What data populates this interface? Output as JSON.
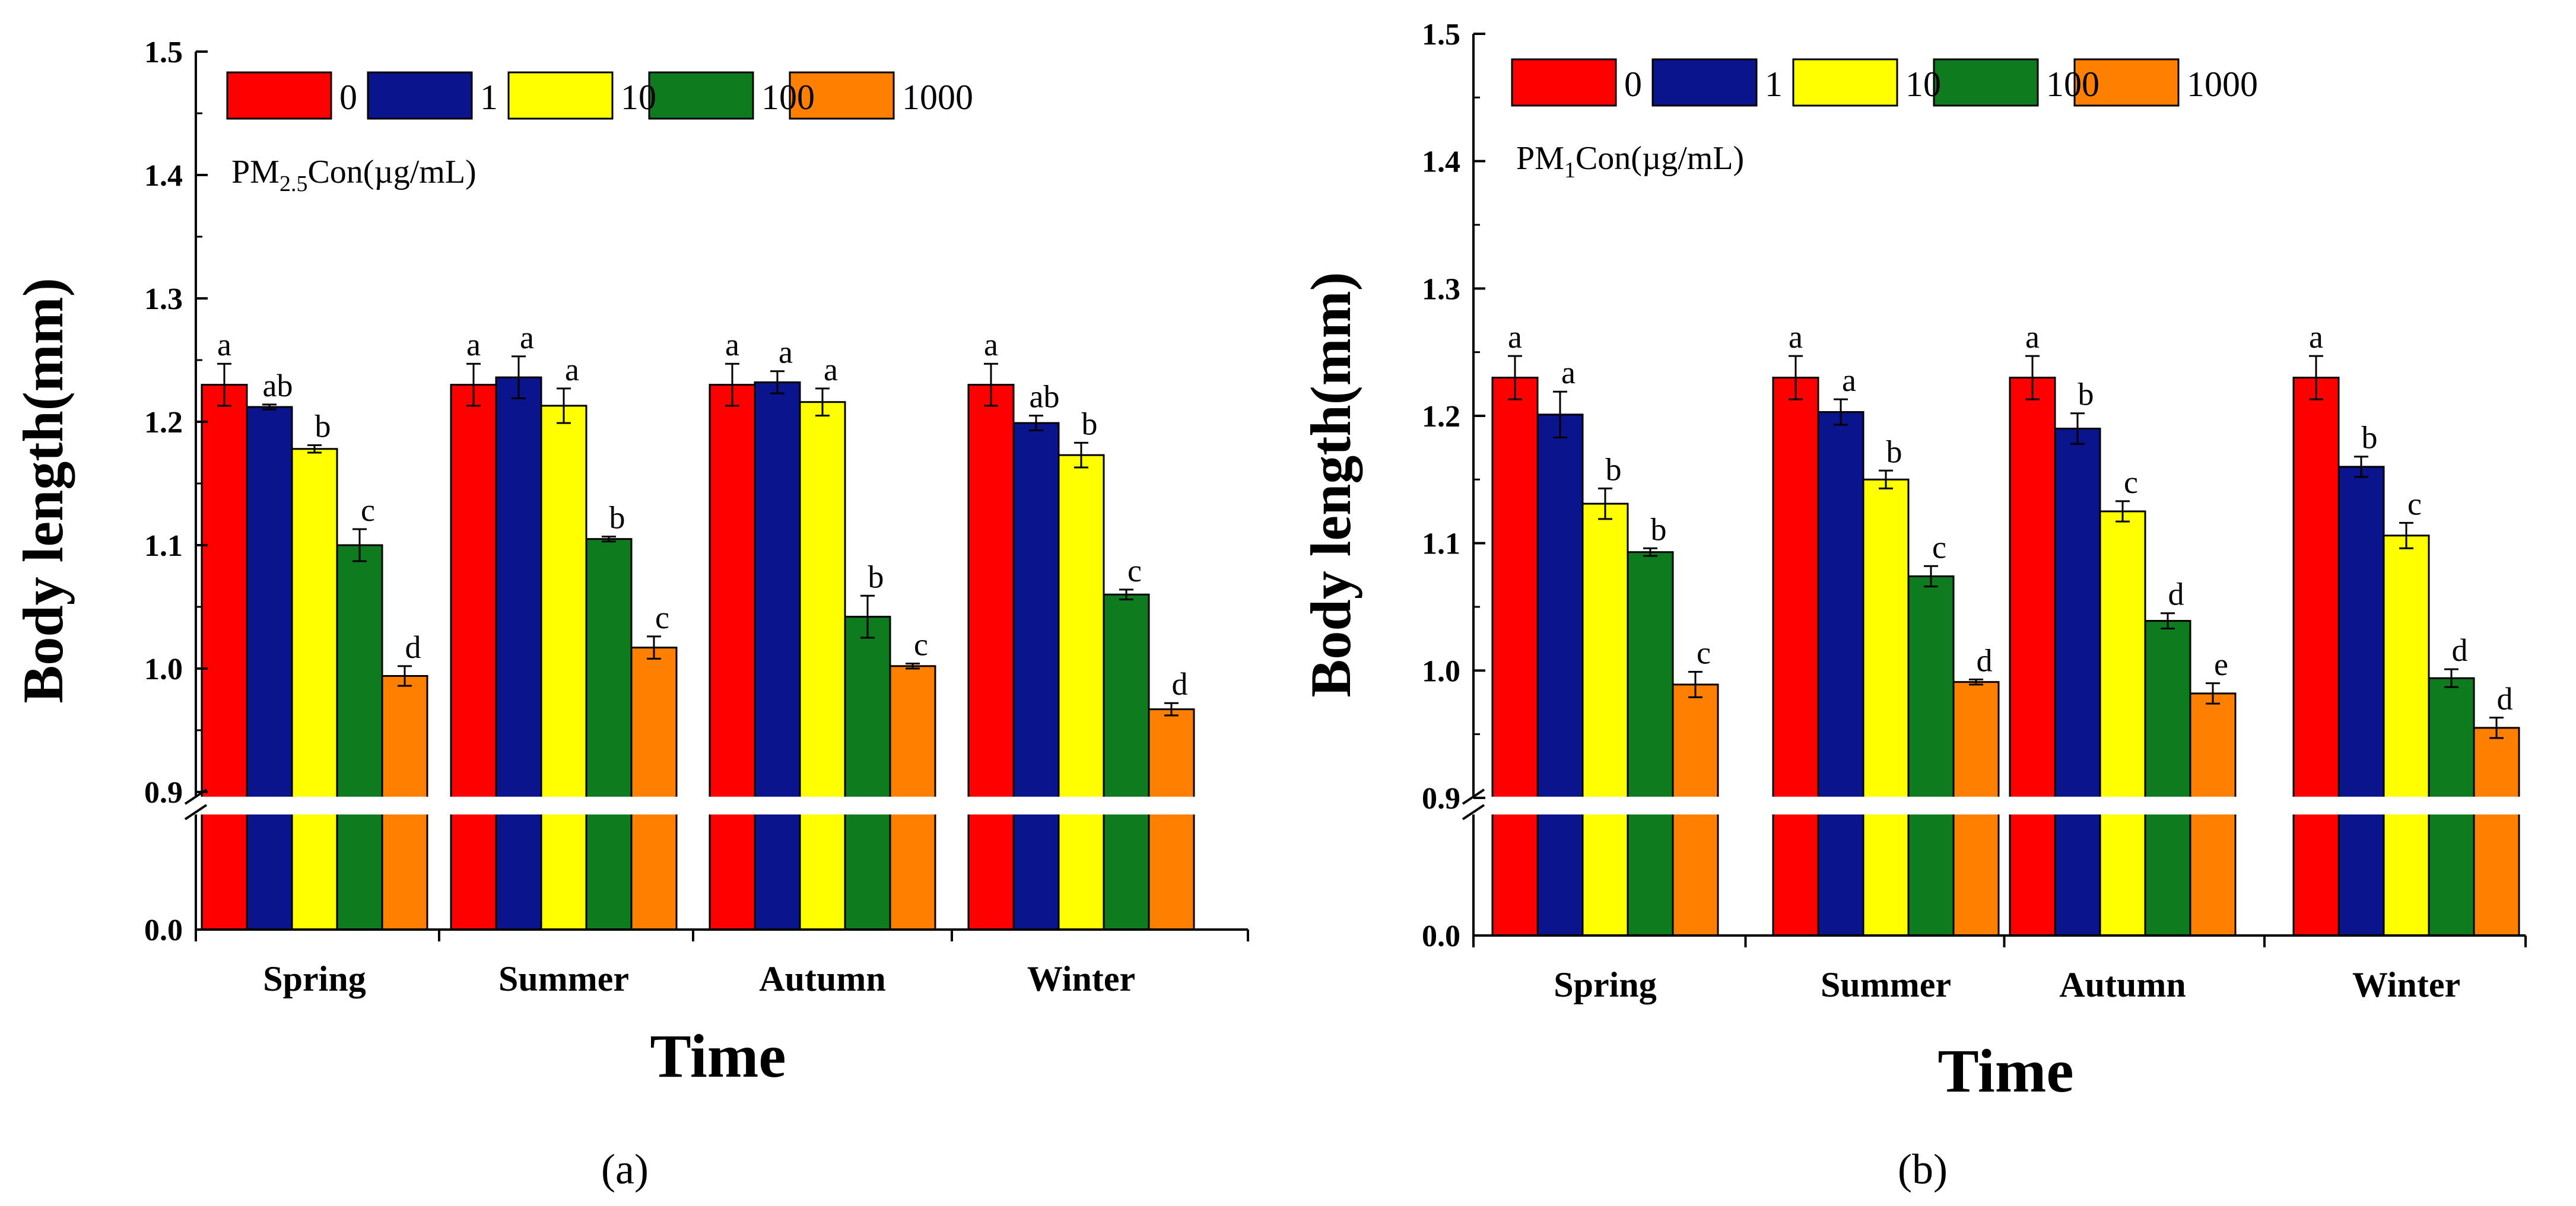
{
  "chart_data": [
    {
      "type": "bar",
      "panel_label": "(a)",
      "panel_letter": "a",
      "legend_title_prefix": "PM",
      "legend_title_sub": "2.5",
      "legend_title_suffix": "Con(µg/mL)",
      "xlabel": "Time",
      "ylabel": "Body length(mm)",
      "categories": [
        "Spring",
        "Summer",
        "Autumn",
        "Winter"
      ],
      "upper_ylim": [
        0.9,
        1.5
      ],
      "y_ticks_upper": [
        "0.9",
        "1.0",
        "1.1",
        "1.2",
        "1.3",
        "1.4",
        "1.5"
      ],
      "y_tick_lower": "0.0",
      "axis_break": true,
      "series": [
        {
          "name": "0",
          "color": "#ff0000",
          "values": [
            1.23,
            1.23,
            1.23,
            1.23
          ],
          "errors": [
            0.017,
            0.017,
            0.017,
            0.017
          ],
          "letters": [
            "a",
            "a",
            "a",
            "a"
          ]
        },
        {
          "name": "1",
          "color": "#0a148c",
          "values": [
            1.212,
            1.236,
            1.232,
            1.199
          ],
          "errors": [
            0.002,
            0.017,
            0.009,
            0.006
          ],
          "letters": [
            "ab",
            "a",
            "a",
            "ab"
          ]
        },
        {
          "name": "10",
          "color": "#ffff00",
          "values": [
            1.178,
            1.213,
            1.216,
            1.173
          ],
          "errors": [
            0.003,
            0.014,
            0.011,
            0.01
          ],
          "letters": [
            "b",
            "a",
            "a",
            "b"
          ]
        },
        {
          "name": "100",
          "color": "#0e7c1e",
          "values": [
            1.1,
            1.105,
            1.042,
            1.06
          ],
          "errors": [
            0.013,
            0.002,
            0.017,
            0.004
          ],
          "letters": [
            "c",
            "b",
            "b",
            "c"
          ]
        },
        {
          "name": "1000",
          "color": "#ff8000",
          "values": [
            0.994,
            1.017,
            1.002,
            0.967
          ],
          "errors": [
            0.008,
            0.009,
            0.002,
            0.005
          ],
          "letters": [
            "d",
            "c",
            "c",
            "d"
          ]
        }
      ]
    },
    {
      "type": "bar",
      "panel_label": "(b)",
      "panel_letter": "b",
      "legend_title_prefix": "PM",
      "legend_title_sub": "1",
      "legend_title_suffix": "Con(µg/mL)",
      "xlabel": "Time",
      "ylabel": "Body length(mm)",
      "categories": [
        "Spring",
        "Summer",
        "Autumn",
        "Winter"
      ],
      "upper_ylim": [
        0.9,
        1.5
      ],
      "y_ticks_upper": [
        "0.9",
        "1.0",
        "1.1",
        "1.2",
        "1.3",
        "1.4",
        "1.5"
      ],
      "y_tick_lower": "0.0",
      "axis_break": true,
      "series": [
        {
          "name": "0",
          "color": "#ff0000",
          "values": [
            1.23,
            1.23,
            1.23,
            1.23
          ],
          "errors": [
            0.017,
            0.017,
            0.017,
            0.017
          ],
          "letters": [
            "a",
            "a",
            "a",
            "a"
          ]
        },
        {
          "name": "1",
          "color": "#0a148c",
          "values": [
            1.201,
            1.203,
            1.19,
            1.16
          ],
          "errors": [
            0.018,
            0.01,
            0.012,
            0.008
          ],
          "letters": [
            "a",
            "a",
            "b",
            "b"
          ]
        },
        {
          "name": "10",
          "color": "#ffff00",
          "values": [
            1.131,
            1.15,
            1.125,
            1.106
          ],
          "errors": [
            0.012,
            0.007,
            0.008,
            0.01
          ],
          "letters": [
            "b",
            "b",
            "c",
            "c"
          ]
        },
        {
          "name": "100",
          "color": "#0e7c1e",
          "values": [
            1.093,
            1.074,
            1.039,
            0.994
          ],
          "errors": [
            0.003,
            0.008,
            0.006,
            0.007
          ],
          "letters": [
            "b",
            "c",
            "d",
            "d"
          ]
        },
        {
          "name": "1000",
          "color": "#ff8000",
          "values": [
            0.989,
            0.991,
            0.982,
            0.955
          ],
          "errors": [
            0.01,
            0.002,
            0.008,
            0.008
          ],
          "letters": [
            "c",
            "d",
            "e",
            "d"
          ]
        }
      ]
    }
  ]
}
